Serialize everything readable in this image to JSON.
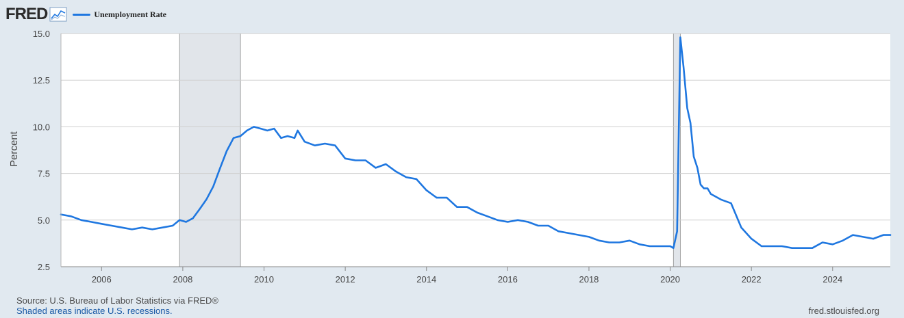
{
  "brand": {
    "logo_text": "FRED"
  },
  "footer": {
    "source": "Source: U.S. Bureau of Labor Statistics via FRED®",
    "recessions_note": "Shaded areas indicate U.S. recessions.",
    "site": "fred.stlouisfed.org"
  },
  "chart_data": {
    "type": "line",
    "ylabel": "Percent",
    "ylim": [
      2.5,
      15.0
    ],
    "yticks": [
      2.5,
      5.0,
      7.5,
      10.0,
      12.5,
      15.0
    ],
    "ytick_labels": [
      "2.5",
      "5.0",
      "7.5",
      "10.0",
      "12.5",
      "15.0"
    ],
    "xlim": [
      2005.0,
      2025.42
    ],
    "xticks": [
      2006,
      2008,
      2010,
      2012,
      2014,
      2016,
      2018,
      2020,
      2022,
      2024
    ],
    "xtick_labels": [
      "2006",
      "2008",
      "2010",
      "2012",
      "2014",
      "2016",
      "2018",
      "2020",
      "2022",
      "2024"
    ],
    "grid": true,
    "legend_position": "top-left",
    "line_color": "#1f77e0",
    "recessions": [
      [
        2007.92,
        2009.42
      ],
      [
        2020.08,
        2020.25
      ]
    ],
    "series": [
      {
        "name": "Unemployment Rate",
        "x": [
          2005.0,
          2005.25,
          2005.5,
          2005.75,
          2006.0,
          2006.25,
          2006.5,
          2006.75,
          2007.0,
          2007.25,
          2007.5,
          2007.75,
          2007.92,
          2008.08,
          2008.25,
          2008.42,
          2008.58,
          2008.75,
          2008.92,
          2009.08,
          2009.25,
          2009.42,
          2009.58,
          2009.75,
          2009.92,
          2010.08,
          2010.25,
          2010.42,
          2010.58,
          2010.75,
          2010.83,
          2011.0,
          2011.25,
          2011.5,
          2011.75,
          2012.0,
          2012.25,
          2012.5,
          2012.75,
          2013.0,
          2013.25,
          2013.5,
          2013.75,
          2014.0,
          2014.25,
          2014.5,
          2014.75,
          2015.0,
          2015.25,
          2015.5,
          2015.75,
          2016.0,
          2016.25,
          2016.5,
          2016.75,
          2017.0,
          2017.25,
          2017.5,
          2017.75,
          2018.0,
          2018.25,
          2018.5,
          2018.75,
          2019.0,
          2019.25,
          2019.5,
          2019.75,
          2020.0,
          2020.08,
          2020.17,
          2020.25,
          2020.33,
          2020.42,
          2020.5,
          2020.58,
          2020.67,
          2020.75,
          2020.83,
          2020.92,
          2021.0,
          2021.25,
          2021.5,
          2021.75,
          2022.0,
          2022.25,
          2022.5,
          2022.75,
          2023.0,
          2023.25,
          2023.5,
          2023.75,
          2024.0,
          2024.25,
          2024.5,
          2024.75,
          2025.0,
          2025.25,
          2025.42
        ],
        "y": [
          5.3,
          5.2,
          5.0,
          4.9,
          4.8,
          4.7,
          4.6,
          4.5,
          4.6,
          4.5,
          4.6,
          4.7,
          5.0,
          4.9,
          5.1,
          5.6,
          6.1,
          6.8,
          7.8,
          8.7,
          9.4,
          9.5,
          9.8,
          10.0,
          9.9,
          9.8,
          9.9,
          9.4,
          9.5,
          9.4,
          9.8,
          9.2,
          9.0,
          9.1,
          9.0,
          8.3,
          8.2,
          8.2,
          7.8,
          8.0,
          7.6,
          7.3,
          7.2,
          6.6,
          6.2,
          6.2,
          5.7,
          5.7,
          5.4,
          5.2,
          5.0,
          4.9,
          5.0,
          4.9,
          4.7,
          4.7,
          4.4,
          4.3,
          4.2,
          4.1,
          3.9,
          3.8,
          3.8,
          3.9,
          3.7,
          3.6,
          3.6,
          3.6,
          3.5,
          4.4,
          14.8,
          13.2,
          11.0,
          10.2,
          8.4,
          7.8,
          6.9,
          6.7,
          6.7,
          6.4,
          6.1,
          5.9,
          4.6,
          4.0,
          3.6,
          3.6,
          3.6,
          3.5,
          3.5,
          3.5,
          3.8,
          3.7,
          3.9,
          4.2,
          4.1,
          4.0,
          4.2,
          4.2
        ]
      }
    ]
  }
}
